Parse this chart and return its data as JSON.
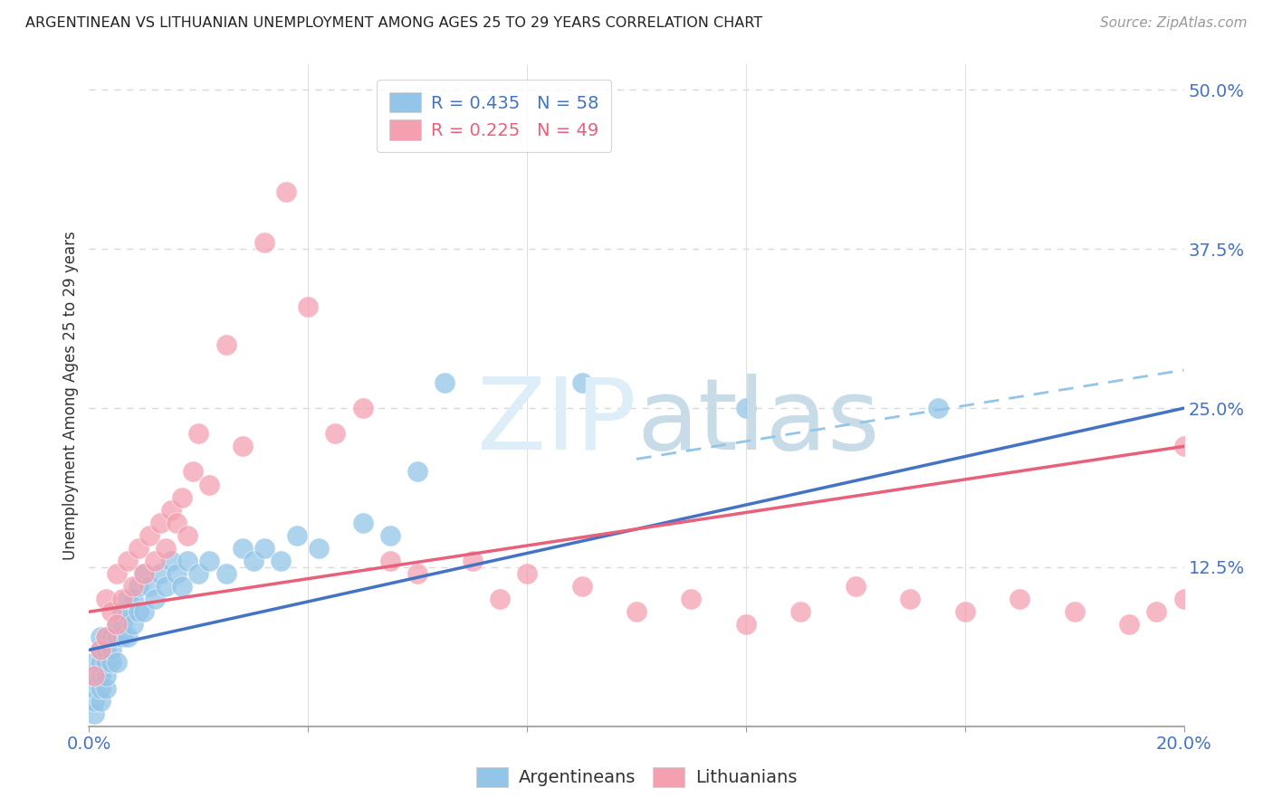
{
  "title": "ARGENTINEAN VS LITHUANIAN UNEMPLOYMENT AMONG AGES 25 TO 29 YEARS CORRELATION CHART",
  "source": "Source: ZipAtlas.com",
  "ylabel": "Unemployment Among Ages 25 to 29 years",
  "xlim": [
    0.0,
    0.2
  ],
  "ylim": [
    0.0,
    0.52
  ],
  "blue_color": "#93c5e8",
  "pink_color": "#f4a0b0",
  "blue_line_color": "#4472c4",
  "pink_line_color": "#e8607a",
  "blue_dash_color": "#93c5e8",
  "tick_color": "#4472c4",
  "grid_color": "#d8d8d8",
  "argentinean_x": [
    0.001,
    0.001,
    0.001,
    0.001,
    0.001,
    0.002,
    0.002,
    0.002,
    0.002,
    0.002,
    0.002,
    0.003,
    0.003,
    0.003,
    0.003,
    0.003,
    0.004,
    0.004,
    0.004,
    0.005,
    0.005,
    0.005,
    0.006,
    0.006,
    0.006,
    0.007,
    0.007,
    0.007,
    0.008,
    0.008,
    0.009,
    0.009,
    0.01,
    0.01,
    0.011,
    0.012,
    0.013,
    0.014,
    0.015,
    0.016,
    0.017,
    0.018,
    0.02,
    0.022,
    0.025,
    0.028,
    0.03,
    0.032,
    0.035,
    0.038,
    0.042,
    0.05,
    0.055,
    0.06,
    0.065,
    0.09,
    0.12,
    0.155
  ],
  "argentinean_y": [
    0.01,
    0.02,
    0.03,
    0.04,
    0.05,
    0.02,
    0.03,
    0.04,
    0.05,
    0.06,
    0.07,
    0.03,
    0.04,
    0.05,
    0.06,
    0.07,
    0.05,
    0.06,
    0.07,
    0.05,
    0.07,
    0.08,
    0.07,
    0.08,
    0.09,
    0.07,
    0.09,
    0.1,
    0.08,
    0.1,
    0.09,
    0.11,
    0.09,
    0.12,
    0.11,
    0.1,
    0.12,
    0.11,
    0.13,
    0.12,
    0.11,
    0.13,
    0.12,
    0.13,
    0.12,
    0.14,
    0.13,
    0.14,
    0.13,
    0.15,
    0.14,
    0.16,
    0.15,
    0.2,
    0.27,
    0.27,
    0.25,
    0.25
  ],
  "lithuanian_x": [
    0.001,
    0.002,
    0.003,
    0.003,
    0.004,
    0.005,
    0.005,
    0.006,
    0.007,
    0.008,
    0.009,
    0.01,
    0.011,
    0.012,
    0.013,
    0.014,
    0.015,
    0.016,
    0.017,
    0.018,
    0.019,
    0.02,
    0.022,
    0.025,
    0.028,
    0.032,
    0.036,
    0.04,
    0.045,
    0.05,
    0.055,
    0.06,
    0.07,
    0.075,
    0.08,
    0.09,
    0.1,
    0.11,
    0.12,
    0.13,
    0.14,
    0.15,
    0.16,
    0.17,
    0.18,
    0.19,
    0.195,
    0.2,
    0.2
  ],
  "lithuanian_y": [
    0.04,
    0.06,
    0.07,
    0.1,
    0.09,
    0.08,
    0.12,
    0.1,
    0.13,
    0.11,
    0.14,
    0.12,
    0.15,
    0.13,
    0.16,
    0.14,
    0.17,
    0.16,
    0.18,
    0.15,
    0.2,
    0.23,
    0.19,
    0.3,
    0.22,
    0.38,
    0.42,
    0.33,
    0.23,
    0.25,
    0.13,
    0.12,
    0.13,
    0.1,
    0.12,
    0.11,
    0.09,
    0.1,
    0.08,
    0.09,
    0.11,
    0.1,
    0.09,
    0.1,
    0.09,
    0.08,
    0.09,
    0.1,
    0.22
  ],
  "arg_line_x0": 0.0,
  "arg_line_y0": 0.06,
  "arg_line_x1": 0.2,
  "arg_line_y1": 0.25,
  "lit_line_x0": 0.0,
  "lit_line_y0": 0.09,
  "lit_line_x1": 0.2,
  "lit_line_y1": 0.22,
  "dash_line_x0": 0.1,
  "dash_line_y0": 0.21,
  "dash_line_x1": 0.2,
  "dash_line_y1": 0.28
}
